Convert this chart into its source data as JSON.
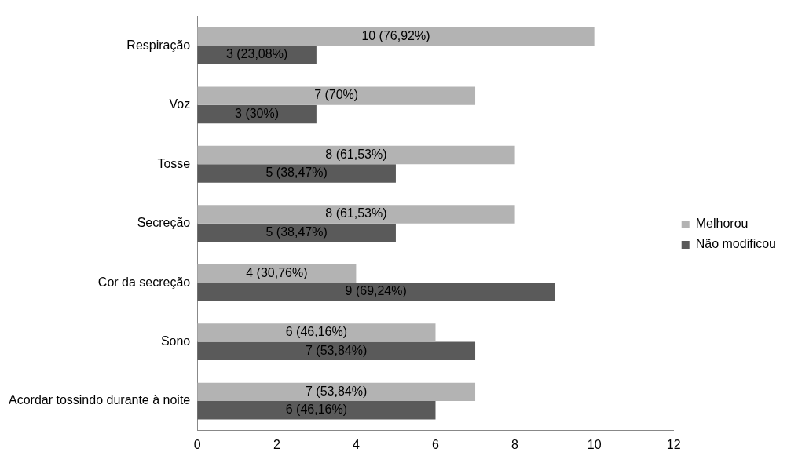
{
  "chart_data": {
    "type": "bar",
    "orientation": "horizontal",
    "categories": [
      "Respiração",
      "Voz",
      "Tosse",
      "Secreção",
      "Cor da secreção",
      "Sono",
      "Acordar tossindo durante à noite"
    ],
    "series": [
      {
        "name": "Melhorou",
        "color": "#b3b3b3",
        "values": [
          10,
          7,
          8,
          8,
          4,
          6,
          7
        ],
        "value_labels": [
          "10 (76,92%)",
          "7 (70%)",
          "8 (61,53%)",
          "8 (61,53%)",
          "4 (30,76%)",
          "6 (46,16%)",
          "7 (53,84%)"
        ]
      },
      {
        "name": "Não modificou",
        "color": "#5a5a5a",
        "values": [
          3,
          3,
          5,
          5,
          9,
          7,
          6
        ],
        "value_labels": [
          "3 (23,08%)",
          "3 (30%)",
          "5 (38,47%)",
          "5 (38,47%)",
          "9 (69,24%)",
          "7 (53,84%)",
          "6 (46,16%)"
        ]
      }
    ],
    "xlim": [
      0,
      12
    ],
    "xticks": [
      0,
      2,
      4,
      6,
      8,
      10,
      12
    ],
    "grid": false,
    "legend": "right"
  }
}
